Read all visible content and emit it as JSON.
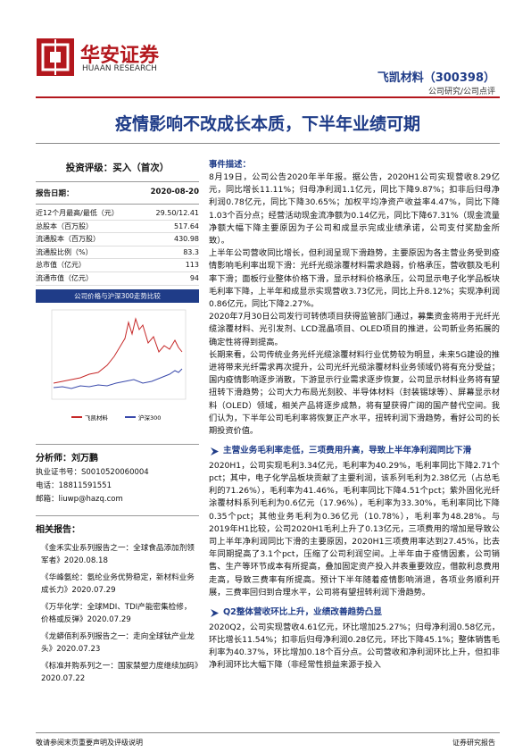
{
  "header": {
    "logo_cn": "华安证券",
    "logo_en": "HUAAN RESEARCH",
    "company": "飞凯材料（300398）",
    "subtitle": "公司研究/公司点评"
  },
  "title": "疫情影响不改成长本质，下半年业绩可期",
  "sidebar": {
    "rating": "投资评级：买入（首次）",
    "report_date_label": "报告日期：",
    "report_date": "2020-08-20",
    "stats": [
      [
        "近12个月最高/最低（元）",
        "29.50/12.41"
      ],
      [
        "总股本（百万股）",
        "517.64"
      ],
      [
        "流通股本（百万股）",
        "430.98"
      ],
      [
        "流通股比例（%）",
        "83.3"
      ],
      [
        "总市值（亿元）",
        "113"
      ],
      [
        "流通市值（亿元）",
        "94"
      ]
    ],
    "chart_title": "公司价格与沪深300走势比较",
    "chart_legend": [
      "飞凯材料",
      "沪深300"
    ],
    "analyst": [
      "分析师：刘万鹏",
      "执业证书号：S0010520060004",
      "电话：18811591551",
      "邮箱：liuwp@hazq.com"
    ],
    "related_title": "相关报告：",
    "related": [
      "《金禾实业系列报告之一：全球食品添加剂领军者》2020.08.18",
      "《华峰氨纶：氨纶业务优势稳定，新材料业务成长力》2020.07.29",
      "《万华化学：全球MDI、TDI产能密集检修，价格或反弹》2020.07.29",
      "《龙蟒佰利系列报告之一：走向全球钛产业龙头》2020.07.23",
      "《标准并购系列之一：国家禁塑力度继续加码》2020.07.22"
    ]
  },
  "main": {
    "event_title": "事件描述：",
    "event_paragraphs": [
      "8月19日，公司公告2020年半年报。据公告，2020H1公司实现营收8.29亿元，同比增长11.11%；归母净利润1.1亿元，同比下降9.87%；扣非后归母净利润0.78亿元，同比下降30.65%；加权平均净资产收益率4.47%，同比下降1.03个百分点；经营活动现金流净额为0.14亿元，同比下降67.31%（现金流量净额大幅下降主要原因为子公司和成显示完成业绩承诺，公司支付奖励金所致）。",
      "上半年公司营收同比增长，但利润呈现下滑趋势，主要原因为各主营业务受到疫情影响毛利率出现下滑：光纤光缆涂覆材料需求趋弱，价格承压，营收额及毛利率下滑；面板行业整体价格下滑，显示材料价格承压，公司显示电子化学品板块毛利率下降，上半年和成显示实现营收3.73亿元，同比上升8.12%；实现净利润0.86亿元，同比下降2.27%。",
      "2020年7月30日公司发行可转债项目获得监管部门通过，募集资金将用于光纤光缆涂覆材料、光引发剂、LCD混晶项目、OLED项目的推进，公司新业务拓展的确定性将得到提高。",
      "长期来看，公司传统业务光纤光缆涂覆材料行业优势较为明显，未来5G建设的推进将带来光纤需求再次提升，公司光纤光缆涂覆材料业务领域仍将有充分受益；国内疫情影响逐步消散，下游显示行业需求逐步恢复，公司显示材料业务将有望扭转下滑趋势；公司大力布局光刻胶、半导体材料（封装锡球等）、屏幕显示材料（OLED）领域，相关产品将逐步成熟，将有望获得广阔的国产替代空间。我们认为，下半年公司毛利率将恢复正产水平，扭转利润下滑趋势，看好公司的长期投资价值。"
    ],
    "sections": [
      {
        "heading": "主营业务毛利率走低，三项费用升高，导致上半年净利润同比下滑",
        "paragraph": "2020H1，公司实现毛利3.34亿元，毛利率为40.29%，毛利率同比下降2.71个pct；其中，电子化学品板块贡献了主要利润，该系列毛利为2.38亿元（占总毛利的71.26%），毛利率为41.46%，毛利率同比下降4.51个pct；紫外固化光纤涂覆材料系列毛利为0.6亿元（17.96%），毛利率为33.30%，毛利率同比下降0.35个pct；其他业务毛利为0.36亿元（10.78%），毛利率为48.28%。与2019年H1比较，公司2020H1毛利上升了0.13亿元，三项费用的增加是导致公司上半年净利润同比下滑的主要原因，2020H1三项费用率达到27.45%，比去年同期提高了3.1个pct，压缩了公司利润空间。上半年由于疫情因素，公司销售、生产等环节成本有所提高，叠加固定资产投入并表重要效应，借款利息费用走高，导致三费率有所提高。预计下半年随着疫情影响消退，各项业务顺利开展，三费率回归到合理水平，公司将有望扭转利润下滑趋势。"
      },
      {
        "heading": "Q2整体营收环比上升，业绩改善趋势凸显",
        "paragraph": "2020Q2，公司实现营收4.61亿元，环比增加25.27%；归母净利润0.58亿元，环比增长11.54%；扣非后归母净利润0.28亿元，环比下降45.1%；整体销售毛利率为40.37%，环比增加0.18个百分点。公司营收和净利润环比上升，但扣非净利润环比大幅下降（非经常性损益来源于投入"
      }
    ]
  },
  "footer": {
    "left": "敬请参阅末页重要声明及评级说明",
    "right": "证券研究报告"
  }
}
